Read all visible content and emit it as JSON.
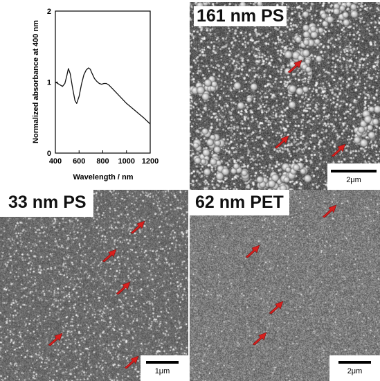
{
  "chart_data": {
    "type": "line",
    "xlabel": "Wavelength / nm",
    "ylabel": "Normalized absorbance at 400 nm",
    "xlim": [
      400,
      1200
    ],
    "ylim": [
      0,
      2
    ],
    "xticks": [
      400,
      600,
      800,
      1000,
      1200
    ],
    "yticks": [
      0,
      1,
      2
    ],
    "x": [
      400,
      430,
      460,
      480,
      495,
      510,
      525,
      545,
      565,
      580,
      600,
      620,
      640,
      660,
      680,
      695,
      710,
      730,
      750,
      770,
      790,
      810,
      830,
      850,
      880,
      920,
      960,
      1000,
      1050,
      1100,
      1150,
      1200
    ],
    "series": [
      {
        "values": [
          1.0,
          0.97,
          0.94,
          0.98,
          1.08,
          1.19,
          1.12,
          0.92,
          0.74,
          0.7,
          0.8,
          0.97,
          1.1,
          1.17,
          1.2,
          1.18,
          1.12,
          1.05,
          1.01,
          0.98,
          0.97,
          0.98,
          0.98,
          0.96,
          0.91,
          0.84,
          0.77,
          0.7,
          0.63,
          0.56,
          0.49,
          0.41
        ]
      }
    ]
  },
  "panels": {
    "b": {
      "label": "161 nm PS",
      "scale": "2μm"
    },
    "c": {
      "label": "33 nm PS",
      "scale": "1μm"
    },
    "d": {
      "label": "62 nm PET",
      "scale": "2μm"
    }
  },
  "colors": {
    "arrow": "#d8201e",
    "scalebar": "#000000",
    "curve": "#111111"
  }
}
